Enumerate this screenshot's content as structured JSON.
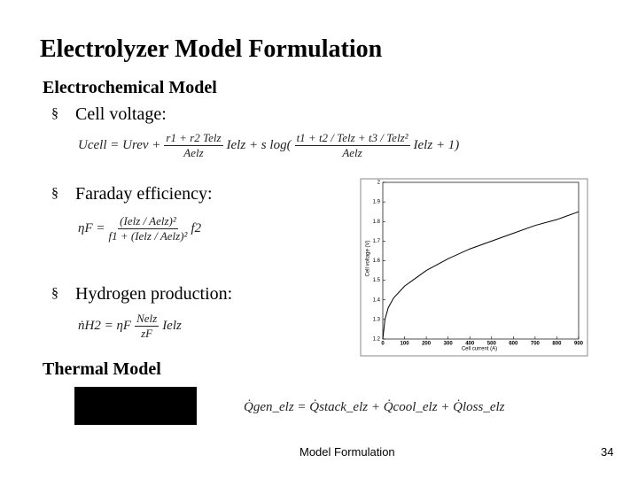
{
  "title": "Electrolyzer Model Formulation",
  "sections": [
    "Electrochemical Model",
    "Thermal Model"
  ],
  "bullets": [
    "Cell voltage:",
    "Faraday efficiency:",
    "Hydrogen production:"
  ],
  "bullet_symbol": "§",
  "equations": [
    {
      "parts": [
        "Ucell = Urev +",
        {
          "num": "r1 + r2 Telz",
          "den": "Aelz"
        },
        "Ielz + s log(",
        {
          "num": "t1 + t2 / Telz + t3 / Telz²",
          "den": "Aelz"
        },
        "Ielz + 1)"
      ]
    },
    {
      "parts": [
        "ηF =",
        {
          "num": "(Ielz / Aelz)²",
          "den": "f1 + (Ielz / Aelz)²"
        },
        "f2"
      ]
    },
    {
      "parts": [
        "ṅH2 = ηF",
        {
          "num": "Nelz",
          "den": "zF"
        },
        "Ielz"
      ]
    },
    {
      "parts": [
        "Q̇gen_elz = Q̇stack_elz + Q̇cool_elz + Q̇loss_elz"
      ]
    }
  ],
  "footer": {
    "center": "Model Formulation",
    "page": "34"
  },
  "chart_data": {
    "type": "line",
    "xlabel": "Cell current (A)",
    "ylabel": "Cell voltage (V)",
    "x": [
      0,
      10,
      25,
      50,
      100,
      150,
      200,
      300,
      400,
      500,
      600,
      700,
      800,
      900
    ],
    "series": [
      {
        "color": "#000000",
        "values": [
          1.2,
          1.3,
          1.36,
          1.41,
          1.47,
          1.51,
          1.55,
          1.61,
          1.66,
          1.7,
          1.74,
          1.78,
          1.81,
          1.85
        ]
      }
    ],
    "xlim": [
      0,
      900
    ],
    "ylim": [
      1.2,
      2
    ],
    "xticks": [
      0,
      100,
      200,
      300,
      400,
      500,
      600,
      700,
      800,
      900
    ],
    "yticks": [
      1.2,
      1.3,
      1.4,
      1.5,
      1.6,
      1.7,
      1.8,
      1.9,
      2
    ],
    "grid": false
  }
}
